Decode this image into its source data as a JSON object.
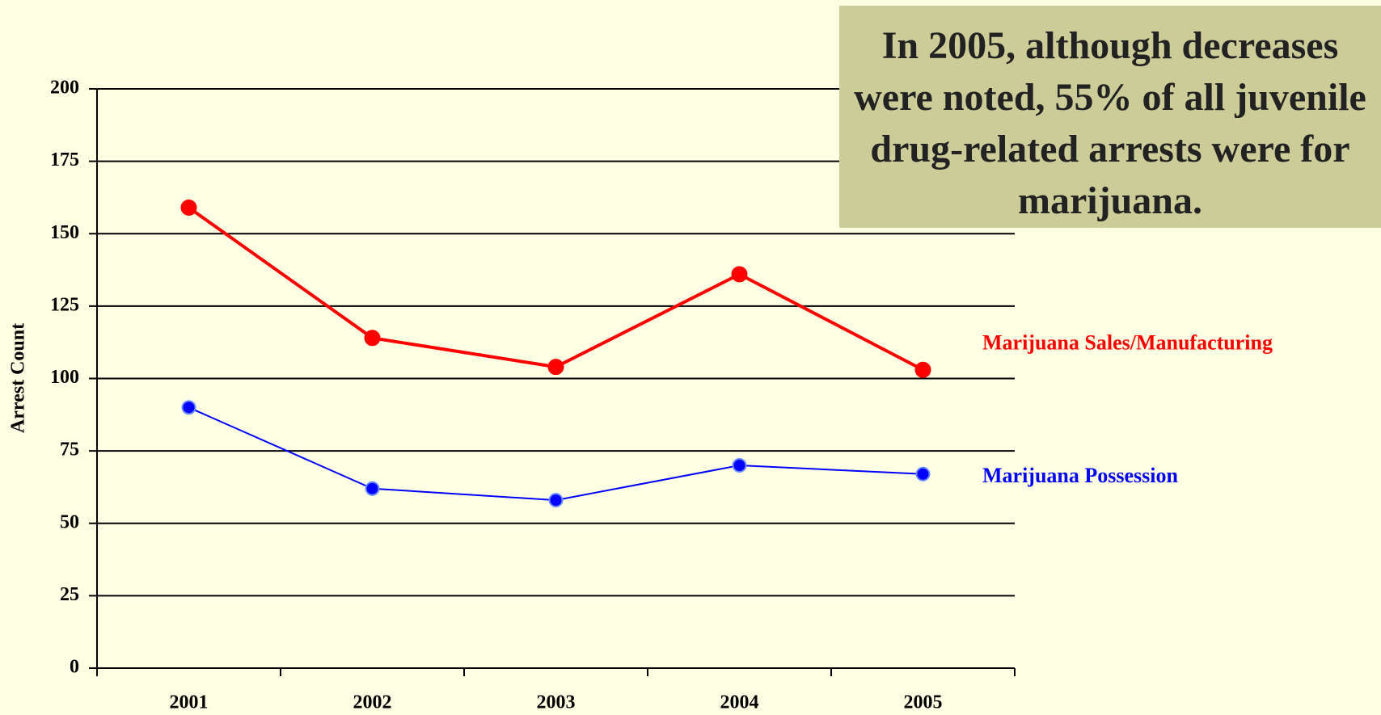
{
  "chart_data": {
    "type": "line",
    "annotation": "In 2005, although decreases were noted, 55% of all juvenile drug-related arrests were for marijuana.",
    "y_label": "Arrest Count",
    "categories": [
      "2001",
      "2002",
      "2003",
      "2004",
      "2005"
    ],
    "series": [
      {
        "name": "Marijuana Sales/Manufacturing",
        "color": "#ff0000",
        "values": [
          159,
          114,
          104,
          136,
          103
        ]
      },
      {
        "name": "Marijuana Possession",
        "color": "#0000ff",
        "values": [
          90,
          62,
          58,
          70,
          67
        ]
      }
    ],
    "ylim": [
      0,
      200
    ],
    "yticks": [
      0,
      25,
      50,
      75,
      100,
      125,
      150,
      175,
      200
    ],
    "grid": true
  }
}
